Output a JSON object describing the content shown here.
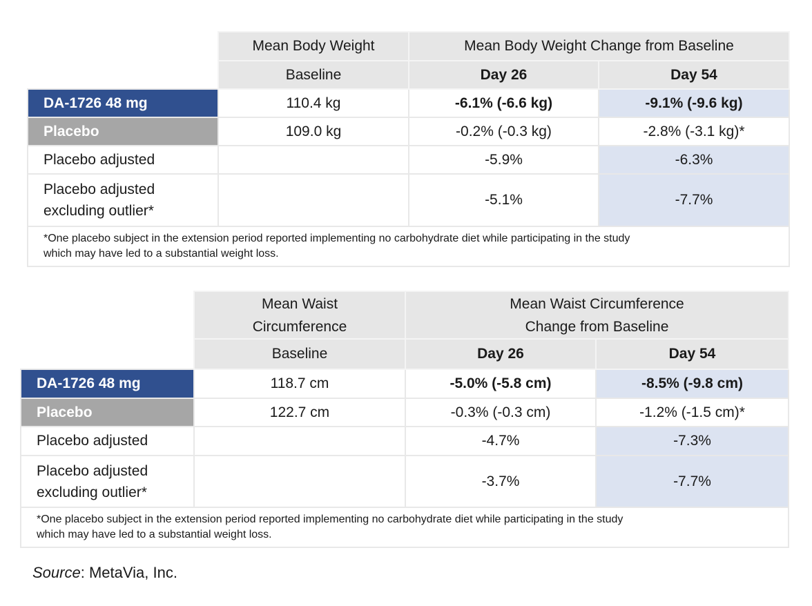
{
  "table1": {
    "header_group_left": "Mean Body Weight",
    "header_group_right": "Mean Body Weight Change from Baseline",
    "col_baseline": "Baseline",
    "col_day26": "Day 26",
    "col_day54": "Day 54",
    "rows": [
      {
        "label": "DA-1726 48 mg",
        "baseline": "110.4 kg",
        "day26": "-6.1% (-6.6 kg)",
        "day54": "-9.1% (-9.6 kg)"
      },
      {
        "label": "Placebo",
        "baseline": "109.0 kg",
        "day26": "-0.2% (-0.3 kg)",
        "day54": "-2.8% (-3.1 kg)*"
      },
      {
        "label": "Placebo adjusted",
        "baseline": "",
        "day26": "-5.9%",
        "day54": "-6.3%"
      },
      {
        "label_line1": "Placebo adjusted",
        "label_line2": "excluding outlier*",
        "baseline": "",
        "day26": "-5.1%",
        "day54": "-7.7%"
      }
    ],
    "footnote_line1": "*One placebo subject in the extension period reported implementing no carbohydrate diet while participating in the study",
    "footnote_line2": "which may have led to a substantial weight loss."
  },
  "table2": {
    "header_group_left_line1": "Mean Waist",
    "header_group_left_line2": "Circumference",
    "header_group_right_line1": "Mean Waist Circumference",
    "header_group_right_line2": "Change from Baseline",
    "col_baseline": "Baseline",
    "col_day26": "Day 26",
    "col_day54": "Day 54",
    "rows": [
      {
        "label": "DA-1726 48 mg",
        "baseline": "118.7 cm",
        "day26": "-5.0% (-5.8 cm)",
        "day54": "-8.5% (-9.8 cm)"
      },
      {
        "label": "Placebo",
        "baseline": "122.7 cm",
        "day26": "-0.3% (-0.3 cm)",
        "day54": "-1.2% (-1.5 cm)*"
      },
      {
        "label": "Placebo adjusted",
        "baseline": "",
        "day26": "-4.7%",
        "day54": "-7.3%"
      },
      {
        "label_line1": "Placebo adjusted",
        "label_line2": "excluding outlier*",
        "baseline": "",
        "day26": "-3.7%",
        "day54": "-7.7%"
      }
    ],
    "footnote_line1": "*One placebo subject in the extension period reported implementing no carbohydrate diet while participating in the study",
    "footnote_line2": "which may have led to a substantial weight loss."
  },
  "source_label": "Source",
  "source_value": ": MetaVia, Inc.",
  "colors": {
    "drug": "#30508f",
    "placebo": "#a6a6a6",
    "header": "#e6e6e6",
    "highlight": "#dce3f1"
  }
}
